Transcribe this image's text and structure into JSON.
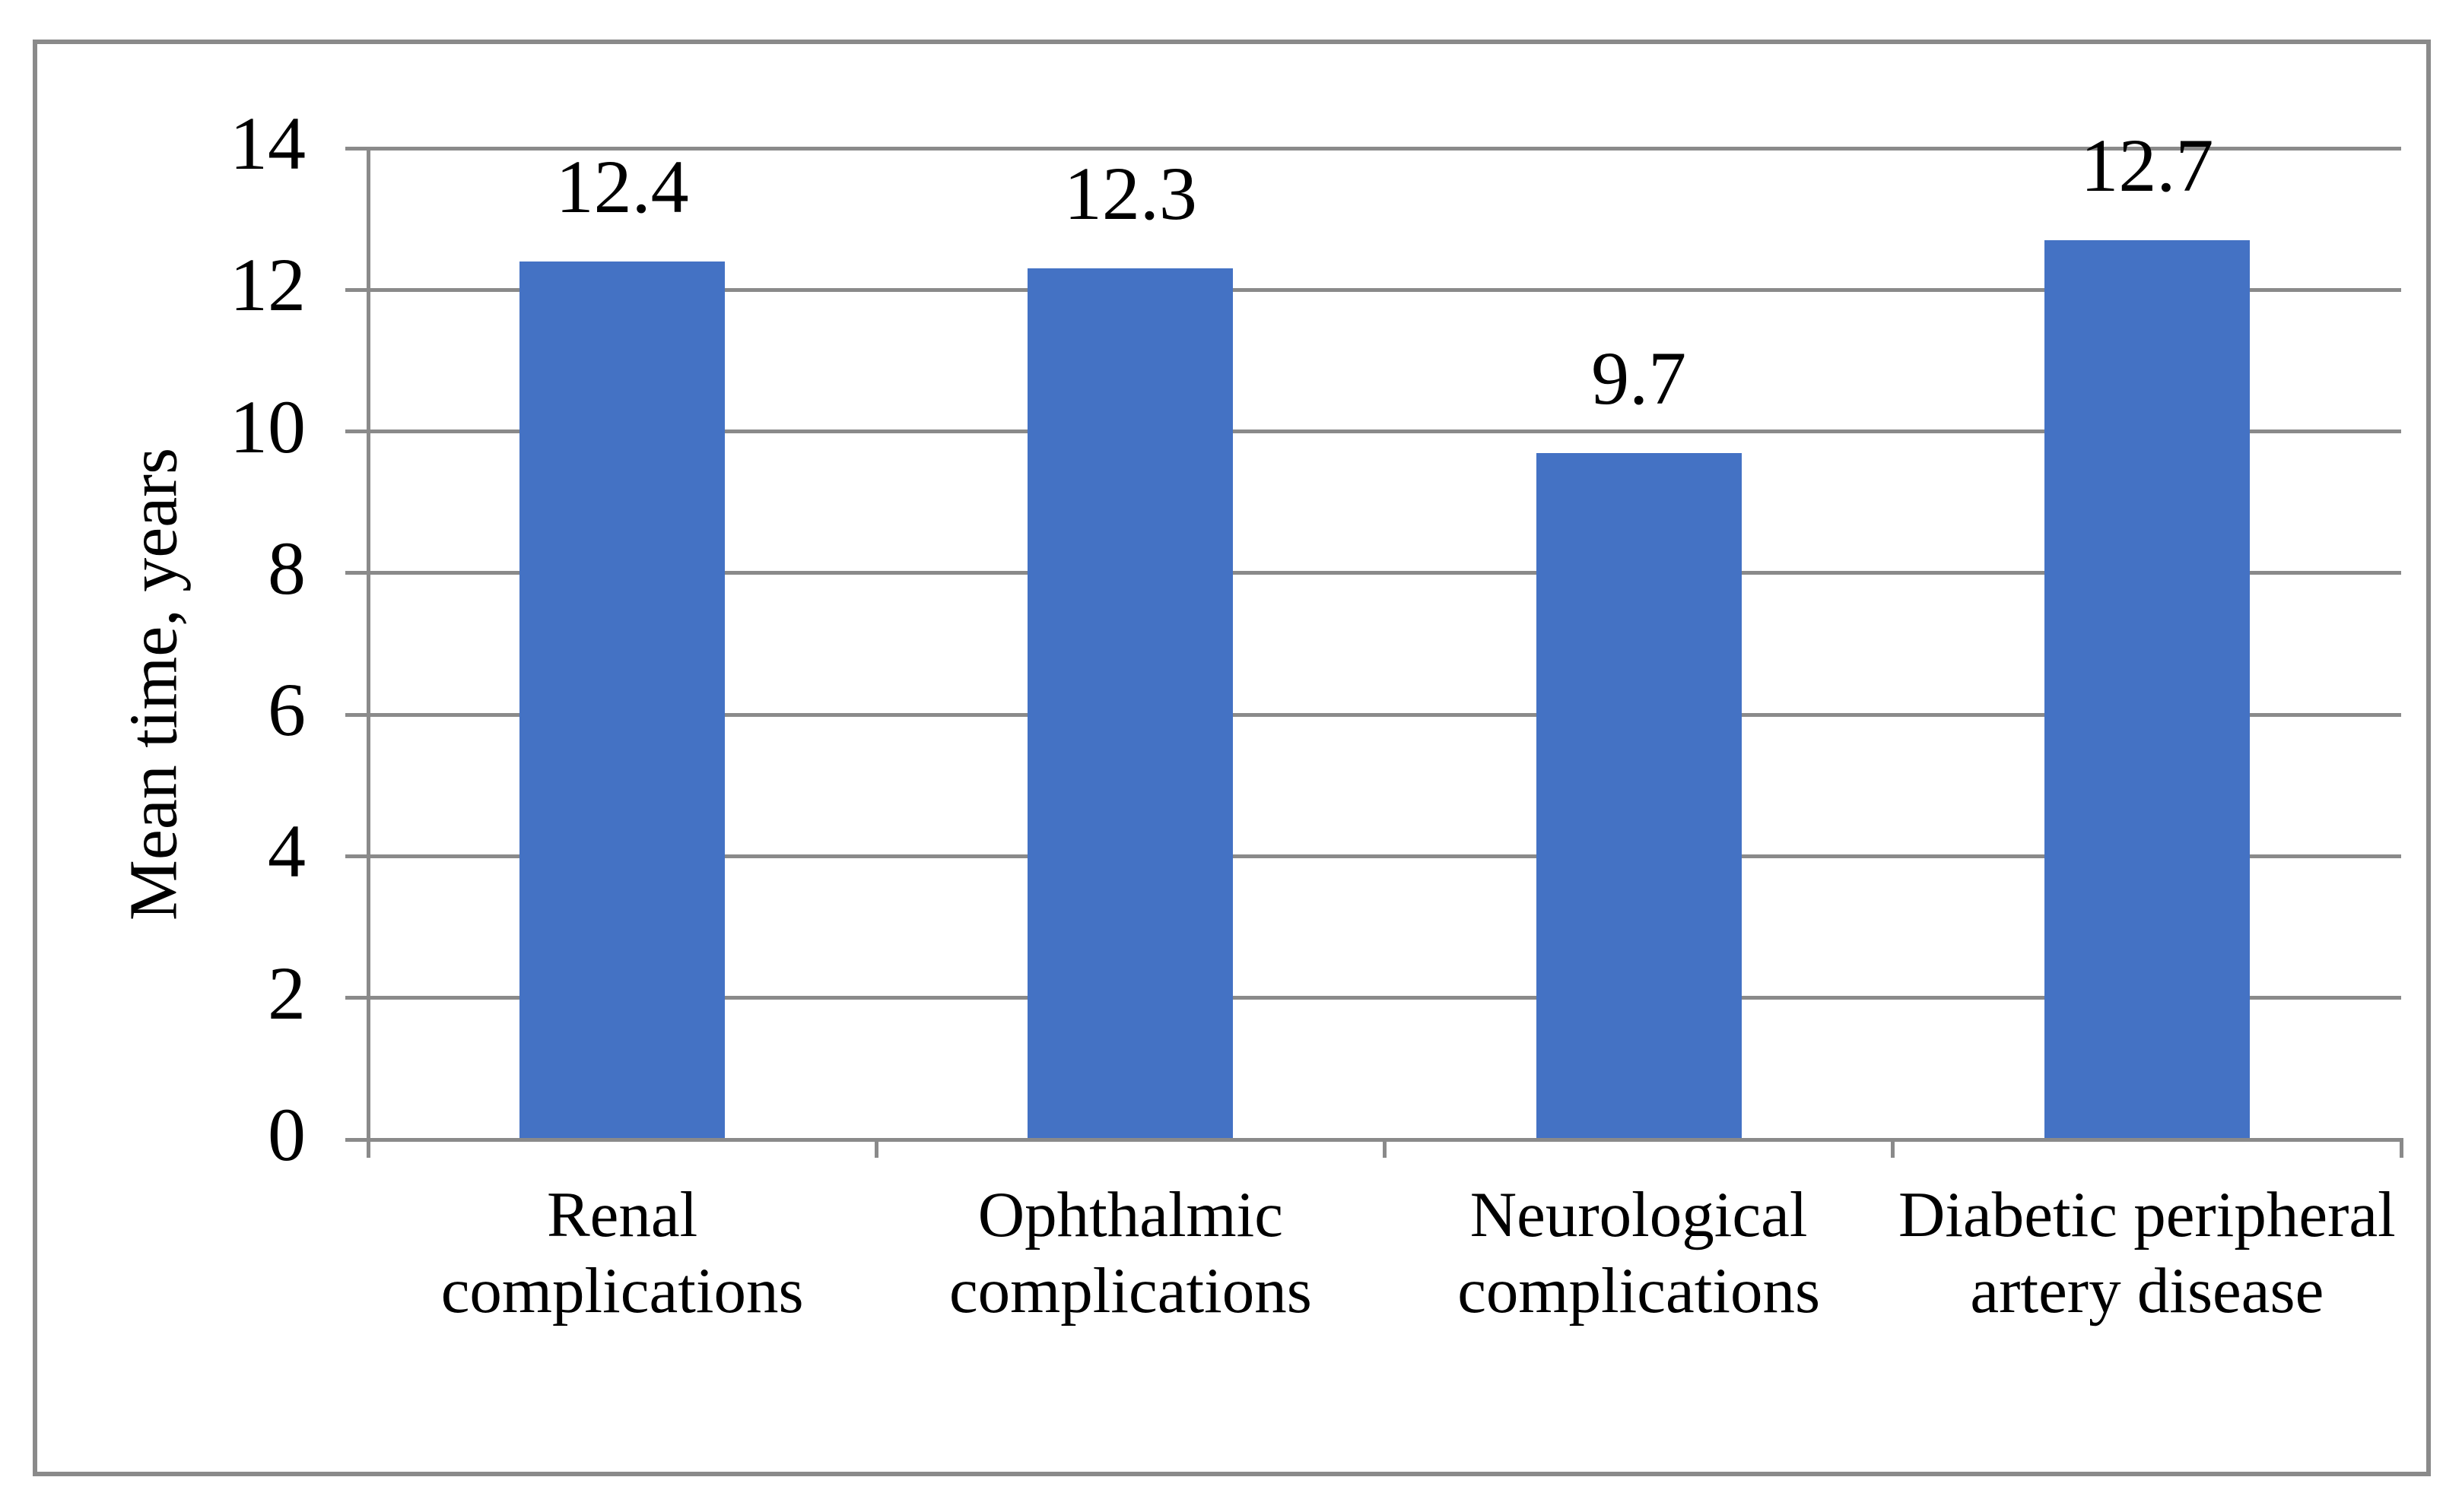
{
  "chart_data": {
    "type": "bar",
    "title": "",
    "xlabel": "",
    "ylabel": "Mean time, years",
    "categories": [
      "Renal complications",
      "Ophthalmic complications",
      "Neurological complications",
      "Diabetic peripheral artery disease"
    ],
    "values": [
      12.4,
      12.3,
      9.7,
      12.7
    ],
    "value_labels": [
      "12.4",
      "12.3",
      "9.7",
      "12.7"
    ],
    "ylim": [
      0,
      14
    ],
    "yticks": [
      0,
      2,
      4,
      6,
      8,
      10,
      12,
      14
    ],
    "grid": "horizontal",
    "legend_position": "none",
    "bar_color": "#4472C4",
    "axis_line_color": "#8a8a8a",
    "gridline_color": "#8a8a8a",
    "frame_border_color": "#8a8a8a",
    "text_color": "#000000"
  }
}
